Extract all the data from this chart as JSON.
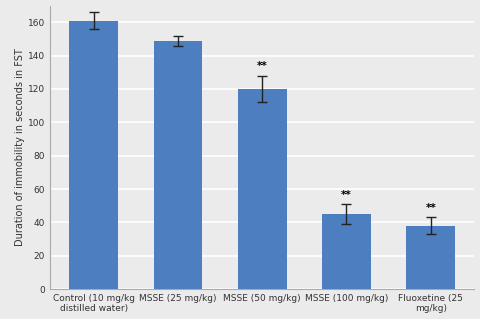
{
  "categories": [
    "Control (10 mg/kg\ndistilled water)",
    "MSSE (25 mg/kg)",
    "MSSE (50 mg/kg)",
    "MSSE (100 mg/kg)",
    "Fluoxetine (25\nmg/kg)"
  ],
  "values": [
    161,
    149,
    120,
    45,
    38
  ],
  "errors": [
    5,
    3,
    8,
    6,
    5
  ],
  "bar_color": "#4d7ebf",
  "significance": [
    false,
    false,
    true,
    true,
    true
  ],
  "sig_label": "**",
  "ylabel": "Duration of immobility in seconds in FST",
  "ylim": [
    0,
    170
  ],
  "yticks": [
    0,
    20,
    40,
    60,
    80,
    100,
    120,
    140,
    160
  ],
  "background_color": "#ebebeb",
  "plot_bg_color": "#ebebeb",
  "grid_color": "#ffffff",
  "axis_fontsize": 7,
  "tick_fontsize": 6.5,
  "ylabel_fontsize": 7,
  "sig_fontsize": 7.5
}
